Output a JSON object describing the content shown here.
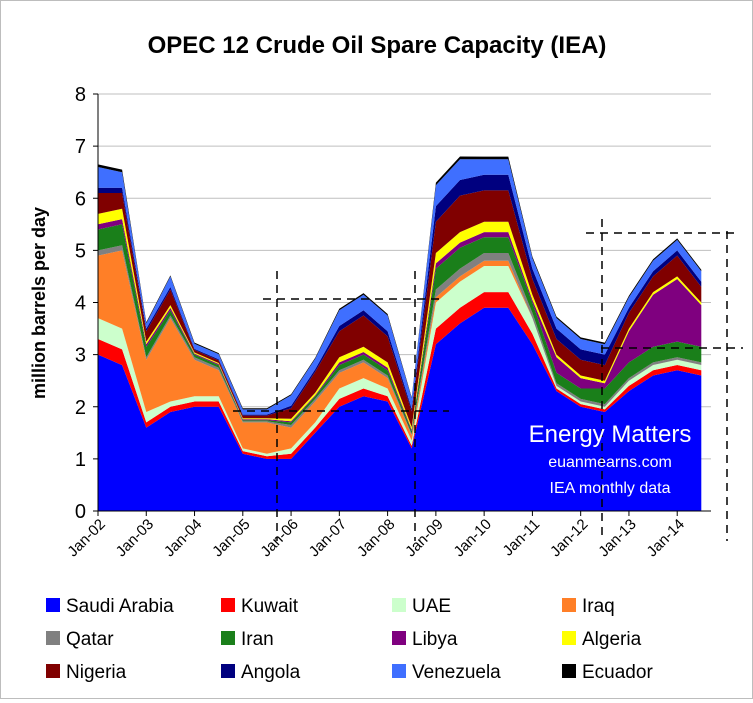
{
  "chart_data": {
    "type": "area",
    "stacked": true,
    "title": "OPEC 12 Crude Oil Spare Capacity (IEA)",
    "ylabel": "million barrels per day",
    "xlabel": "",
    "ylim": [
      0,
      8
    ],
    "yticks": [
      "0",
      "1",
      "2",
      "3",
      "4",
      "5",
      "6",
      "7",
      "8"
    ],
    "xticks": [
      "Jan-02",
      "Jan-03",
      "Jan-04",
      "Jan-05",
      "Jan-06",
      "Jan-07",
      "Jan-08",
      "Jan-09",
      "Jan-10",
      "Jan-11",
      "Jan-12",
      "Jan-13",
      "Jan-14"
    ],
    "grid": true,
    "legend": "bottom",
    "x": [
      "Jan-02",
      "Jul-02",
      "Jan-03",
      "Jul-03",
      "Jan-04",
      "Jul-04",
      "Jan-05",
      "Jul-05",
      "Jan-06",
      "Jul-06",
      "Jan-07",
      "Jul-07",
      "Jan-08",
      "Jul-08",
      "Jan-09",
      "Jul-09",
      "Jan-10",
      "Jul-10",
      "Jan-11",
      "Jul-11",
      "Jan-12",
      "Jul-12",
      "Jan-13",
      "Jul-13",
      "Jan-14",
      "Jul-14"
    ],
    "series": [
      {
        "name": "Saudi Arabia",
        "color": "#0000ff",
        "values": [
          3.0,
          2.8,
          1.6,
          1.9,
          2.0,
          2.0,
          1.1,
          1.0,
          1.0,
          1.5,
          2.0,
          2.2,
          2.1,
          1.2,
          3.2,
          3.6,
          3.9,
          3.9,
          3.2,
          2.3,
          2.0,
          1.9,
          2.3,
          2.6,
          2.7,
          2.6
        ]
      },
      {
        "name": "Kuwait",
        "color": "#ff0000",
        "values": [
          0.3,
          0.3,
          0.1,
          0.1,
          0.1,
          0.1,
          0.05,
          0.05,
          0.1,
          0.1,
          0.15,
          0.15,
          0.1,
          0.05,
          0.3,
          0.3,
          0.3,
          0.3,
          0.2,
          0.05,
          0.05,
          0.05,
          0.1,
          0.1,
          0.1,
          0.1
        ]
      },
      {
        "name": "UAE",
        "color": "#ccffcc",
        "values": [
          0.4,
          0.4,
          0.2,
          0.1,
          0.1,
          0.1,
          0.05,
          0.05,
          0.1,
          0.1,
          0.2,
          0.2,
          0.15,
          0.1,
          0.5,
          0.5,
          0.5,
          0.5,
          0.3,
          0.05,
          0.05,
          0.05,
          0.1,
          0.1,
          0.1,
          0.1
        ]
      },
      {
        "name": "Iraq",
        "color": "#ff7f27",
        "values": [
          1.2,
          1.5,
          1.0,
          1.6,
          0.7,
          0.5,
          0.5,
          0.6,
          0.4,
          0.4,
          0.3,
          0.3,
          0.2,
          0.1,
          0.1,
          0.1,
          0.1,
          0.1,
          0.0,
          0.0,
          0.0,
          0.0,
          0.0,
          0.0,
          0.0,
          0.0
        ]
      },
      {
        "name": "Qatar",
        "color": "#808080",
        "values": [
          0.1,
          0.1,
          0.05,
          0.05,
          0.05,
          0.05,
          0.02,
          0.02,
          0.05,
          0.05,
          0.05,
          0.05,
          0.05,
          0.03,
          0.15,
          0.15,
          0.15,
          0.15,
          0.1,
          0.05,
          0.05,
          0.05,
          0.05,
          0.05,
          0.05,
          0.05
        ]
      },
      {
        "name": "Iran",
        "color": "#1a7f1a",
        "values": [
          0.4,
          0.4,
          0.2,
          0.1,
          0.05,
          0.05,
          0.02,
          0.02,
          0.05,
          0.05,
          0.1,
          0.1,
          0.1,
          0.05,
          0.4,
          0.4,
          0.3,
          0.3,
          0.2,
          0.2,
          0.2,
          0.3,
          0.3,
          0.3,
          0.3,
          0.3
        ]
      },
      {
        "name": "Libya",
        "color": "#7f007f",
        "values": [
          0.1,
          0.1,
          0.05,
          0.05,
          0.02,
          0.02,
          0.02,
          0.02,
          0.02,
          0.02,
          0.05,
          0.05,
          0.05,
          0.03,
          0.1,
          0.1,
          0.1,
          0.1,
          0.05,
          0.3,
          0.2,
          0.1,
          0.6,
          1.0,
          1.2,
          0.8
        ]
      },
      {
        "name": "Algeria",
        "color": "#ffff00",
        "values": [
          0.2,
          0.2,
          0.05,
          0.05,
          0.02,
          0.02,
          0.02,
          0.02,
          0.05,
          0.05,
          0.1,
          0.1,
          0.1,
          0.05,
          0.2,
          0.2,
          0.2,
          0.2,
          0.1,
          0.05,
          0.05,
          0.05,
          0.05,
          0.05,
          0.05,
          0.05
        ]
      },
      {
        "name": "Nigeria",
        "color": "#800000",
        "values": [
          0.4,
          0.3,
          0.2,
          0.3,
          0.05,
          0.05,
          0.05,
          0.05,
          0.2,
          0.4,
          0.5,
          0.6,
          0.5,
          0.3,
          0.6,
          0.7,
          0.6,
          0.6,
          0.3,
          0.3,
          0.3,
          0.3,
          0.3,
          0.3,
          0.4,
          0.3
        ]
      },
      {
        "name": "Angola",
        "color": "#00007f",
        "values": [
          0.1,
          0.1,
          0.05,
          0.05,
          0.02,
          0.02,
          0.02,
          0.02,
          0.05,
          0.05,
          0.1,
          0.1,
          0.1,
          0.05,
          0.3,
          0.3,
          0.3,
          0.3,
          0.2,
          0.2,
          0.2,
          0.2,
          0.1,
          0.1,
          0.1,
          0.1
        ]
      },
      {
        "name": "Venezuela",
        "color": "#3f6fff",
        "values": [
          0.4,
          0.3,
          0.1,
          0.2,
          0.1,
          0.1,
          0.1,
          0.1,
          0.2,
          0.2,
          0.3,
          0.3,
          0.3,
          0.2,
          0.4,
          0.4,
          0.3,
          0.3,
          0.2,
          0.2,
          0.2,
          0.2,
          0.2,
          0.2,
          0.2,
          0.2
        ]
      },
      {
        "name": "Ecuador",
        "color": "#000000",
        "values": [
          0.05,
          0.05,
          0.02,
          0.02,
          0.02,
          0.02,
          0.02,
          0.02,
          0.02,
          0.02,
          0.03,
          0.03,
          0.03,
          0.02,
          0.05,
          0.05,
          0.05,
          0.05,
          0.03,
          0.03,
          0.03,
          0.03,
          0.03,
          0.03,
          0.03,
          0.03
        ]
      }
    ],
    "annotations": [
      "Energy Matters",
      "euanmearns.com",
      "IEA monthly data"
    ]
  }
}
